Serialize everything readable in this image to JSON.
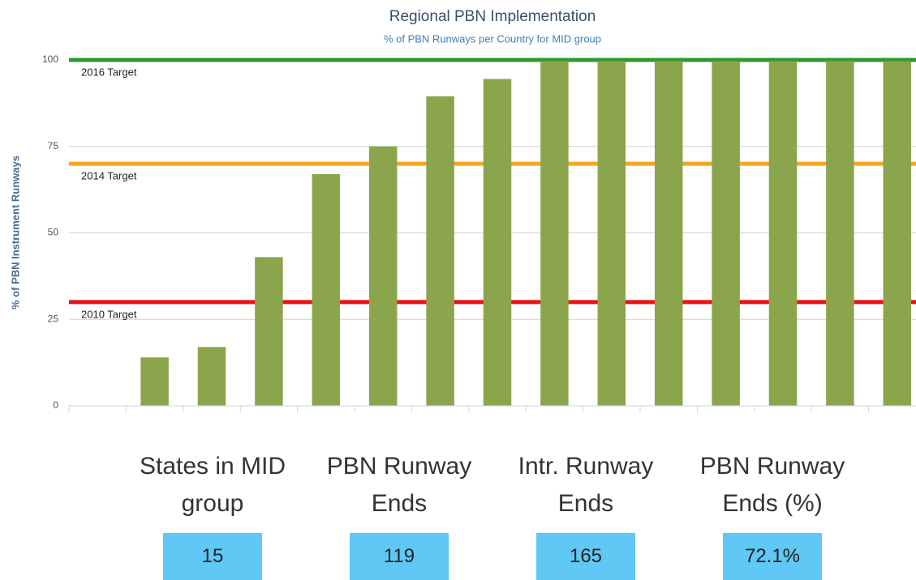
{
  "chart_data": {
    "type": "bar",
    "title": "Regional PBN Implementation",
    "subtitle": "% of PBN Runways per Country for MID group",
    "y_label": "% of PBN Instrument Runways",
    "categories": [
      null,
      null,
      null,
      null,
      null,
      null,
      null,
      null,
      null,
      null,
      null,
      null,
      null,
      null,
      null
    ],
    "values": [
      0,
      14,
      17,
      43,
      67,
      75,
      89.5,
      94.5,
      100,
      100,
      100,
      100,
      100,
      100,
      100
    ],
    "color": "#8ba54d",
    "ylim": [
      0,
      100
    ],
    "yticks": [
      0,
      25,
      50,
      75,
      100
    ],
    "grid": true,
    "target_lines": [
      {
        "label": "2016 Target",
        "value": 100,
        "color": "#2e9a2e"
      },
      {
        "label": "2014 Target",
        "value": 70,
        "color": "#f5a623"
      },
      {
        "label": "2010 Target",
        "value": 30,
        "color": "#ee1111"
      }
    ]
  },
  "stats": [
    {
      "label": "States in MID group",
      "value": "15"
    },
    {
      "label": "PBN Runway Ends",
      "value": "119"
    },
    {
      "label": "Intr. Runway Ends",
      "value": "165"
    },
    {
      "label": "PBN Runway Ends (%)",
      "value": "72.1%"
    }
  ]
}
